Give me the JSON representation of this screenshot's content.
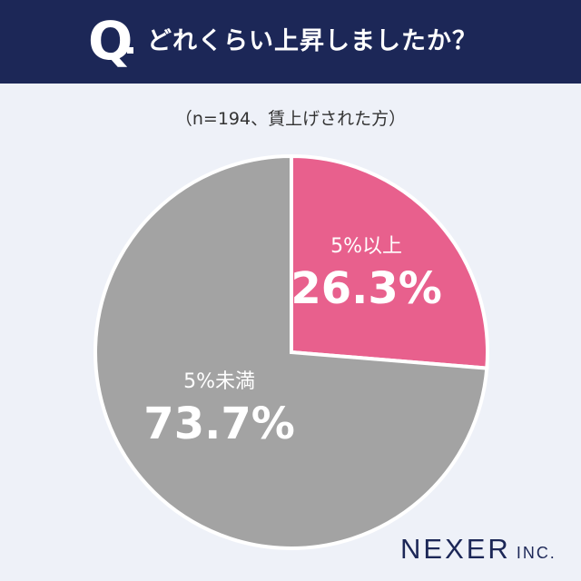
{
  "header": {
    "q_mark": "Q",
    "question": "どれくらい上昇しましたか？"
  },
  "note": "（n=194、賃上げされた方）",
  "brand": {
    "name": "NEXER",
    "suffix": "INC."
  },
  "colors": {
    "header_bg": "#1c2757",
    "background": "#eef1f8",
    "slice_pink": "#e8608d",
    "slice_gray": "#a3a3a3"
  },
  "chart_data": {
    "type": "pie",
    "title": "",
    "slices": [
      {
        "label": "5%以上",
        "value": 26.3,
        "value_label": "26.3%",
        "color": "#e8608d"
      },
      {
        "label": "5%未満",
        "value": 73.7,
        "value_label": "73.7%",
        "color": "#a3a3a3"
      }
    ]
  }
}
